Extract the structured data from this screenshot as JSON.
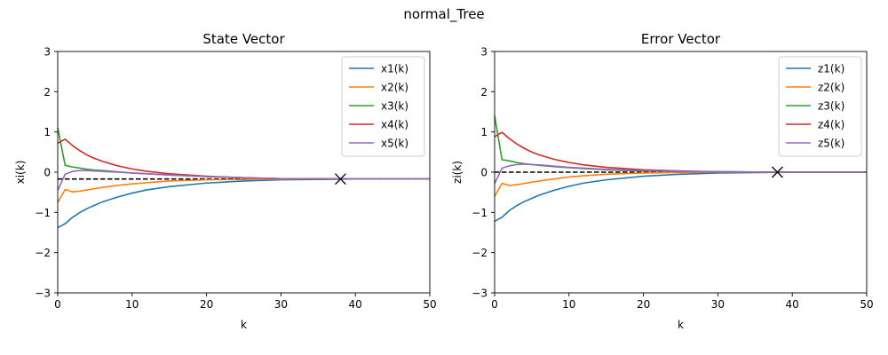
{
  "figure": {
    "suptitle": "normal_Tree"
  },
  "colors": [
    "#1f77b4",
    "#ff7f0e",
    "#2ca02c",
    "#d62728",
    "#9467bd"
  ],
  "chart_data": [
    {
      "type": "line",
      "title": "State Vector",
      "xlabel": "k",
      "ylabel": "xi(k)",
      "xlim": [
        0,
        50
      ],
      "ylim": [
        -3,
        3
      ],
      "xticks": [
        "0",
        "10",
        "20",
        "30",
        "40",
        "50"
      ],
      "yticks": [
        "−3",
        "−2",
        "−1",
        "0",
        "1",
        "2",
        "3"
      ],
      "legend_position": "top-right",
      "reference_line": {
        "y": -0.17,
        "style": "dashed"
      },
      "marker": {
        "x": 38,
        "y": -0.17,
        "symbol": "x"
      },
      "series": [
        {
          "name": "x1(k)",
          "x": [
            0,
            1,
            2,
            3,
            4,
            5,
            6,
            8,
            10,
            12,
            15,
            20,
            25,
            30,
            40,
            50
          ],
          "values": [
            -1.38,
            -1.28,
            -1.12,
            -1.0,
            -0.9,
            -0.82,
            -0.74,
            -0.62,
            -0.52,
            -0.44,
            -0.36,
            -0.27,
            -0.22,
            -0.19,
            -0.17,
            -0.17
          ]
        },
        {
          "name": "x2(k)",
          "x": [
            0,
            1,
            2,
            3,
            4,
            5,
            6,
            8,
            10,
            12,
            15,
            20,
            25,
            30,
            40,
            50
          ],
          "values": [
            -0.75,
            -0.43,
            -0.49,
            -0.47,
            -0.44,
            -0.41,
            -0.38,
            -0.33,
            -0.29,
            -0.26,
            -0.22,
            -0.19,
            -0.18,
            -0.17,
            -0.17,
            -0.17
          ]
        },
        {
          "name": "x3(k)",
          "x": [
            0,
            1,
            2,
            3,
            4,
            5,
            6,
            8,
            10,
            12,
            15,
            20,
            25,
            30,
            40,
            50
          ],
          "values": [
            1.1,
            0.17,
            0.13,
            0.1,
            0.07,
            0.05,
            0.04,
            0.01,
            -0.02,
            -0.04,
            -0.07,
            -0.11,
            -0.14,
            -0.16,
            -0.17,
            -0.17
          ]
        },
        {
          "name": "x4(k)",
          "x": [
            0,
            1,
            2,
            3,
            4,
            5,
            6,
            8,
            10,
            12,
            15,
            20,
            25,
            30,
            40,
            50
          ],
          "values": [
            0.72,
            0.82,
            0.66,
            0.53,
            0.42,
            0.34,
            0.27,
            0.16,
            0.08,
            0.02,
            -0.04,
            -0.1,
            -0.14,
            -0.16,
            -0.17,
            -0.17
          ]
        },
        {
          "name": "x5(k)",
          "x": [
            0,
            1,
            2,
            3,
            4,
            5,
            6,
            8,
            10,
            12,
            15,
            20,
            25,
            30,
            40,
            50
          ],
          "values": [
            -0.45,
            -0.05,
            0.02,
            0.04,
            0.04,
            0.03,
            0.02,
            0.0,
            -0.02,
            -0.04,
            -0.07,
            -0.11,
            -0.14,
            -0.16,
            -0.17,
            -0.17
          ]
        }
      ]
    },
    {
      "type": "line",
      "title": "Error Vector",
      "xlabel": "k",
      "ylabel": "zi(k)",
      "xlim": [
        0,
        50
      ],
      "ylim": [
        -3,
        3
      ],
      "xticks": [
        "0",
        "10",
        "20",
        "30",
        "40",
        "50"
      ],
      "yticks": [
        "−3",
        "−2",
        "−1",
        "0",
        "1",
        "2",
        "3"
      ],
      "legend_position": "top-right",
      "reference_line": {
        "y": 0,
        "style": "dashed"
      },
      "marker": {
        "x": 38,
        "y": 0,
        "symbol": "x"
      },
      "series": [
        {
          "name": "z1(k)",
          "x": [
            0,
            1,
            2,
            3,
            4,
            5,
            6,
            8,
            10,
            12,
            15,
            20,
            25,
            30,
            40,
            50
          ],
          "values": [
            -1.22,
            -1.12,
            -0.95,
            -0.83,
            -0.73,
            -0.65,
            -0.57,
            -0.45,
            -0.35,
            -0.27,
            -0.19,
            -0.1,
            -0.05,
            -0.02,
            0.0,
            0.0
          ]
        },
        {
          "name": "z2(k)",
          "x": [
            0,
            1,
            2,
            3,
            4,
            5,
            6,
            8,
            10,
            12,
            15,
            20,
            25,
            30,
            40,
            50
          ],
          "values": [
            -0.6,
            -0.28,
            -0.33,
            -0.31,
            -0.28,
            -0.25,
            -0.22,
            -0.17,
            -0.12,
            -0.09,
            -0.05,
            -0.02,
            -0.01,
            0.0,
            0.0,
            0.0
          ]
        },
        {
          "name": "z3(k)",
          "x": [
            0,
            1,
            2,
            3,
            4,
            5,
            6,
            8,
            10,
            12,
            15,
            20,
            25,
            30,
            40,
            50
          ],
          "values": [
            1.4,
            0.31,
            0.28,
            0.24,
            0.21,
            0.19,
            0.17,
            0.14,
            0.11,
            0.09,
            0.06,
            0.03,
            0.02,
            0.01,
            0.0,
            0.0
          ]
        },
        {
          "name": "z4(k)",
          "x": [
            0,
            1,
            2,
            3,
            4,
            5,
            6,
            8,
            10,
            12,
            15,
            20,
            25,
            30,
            40,
            50
          ],
          "values": [
            0.88,
            0.99,
            0.83,
            0.7,
            0.59,
            0.5,
            0.43,
            0.32,
            0.24,
            0.18,
            0.12,
            0.06,
            0.03,
            0.01,
            0.0,
            0.0
          ]
        },
        {
          "name": "z5(k)",
          "x": [
            0,
            1,
            2,
            3,
            4,
            5,
            6,
            8,
            10,
            12,
            15,
            20,
            25,
            30,
            40,
            50
          ],
          "values": [
            -0.28,
            0.1,
            0.16,
            0.19,
            0.2,
            0.19,
            0.18,
            0.15,
            0.12,
            0.1,
            0.07,
            0.04,
            0.02,
            0.01,
            0.0,
            0.0
          ]
        }
      ]
    }
  ]
}
